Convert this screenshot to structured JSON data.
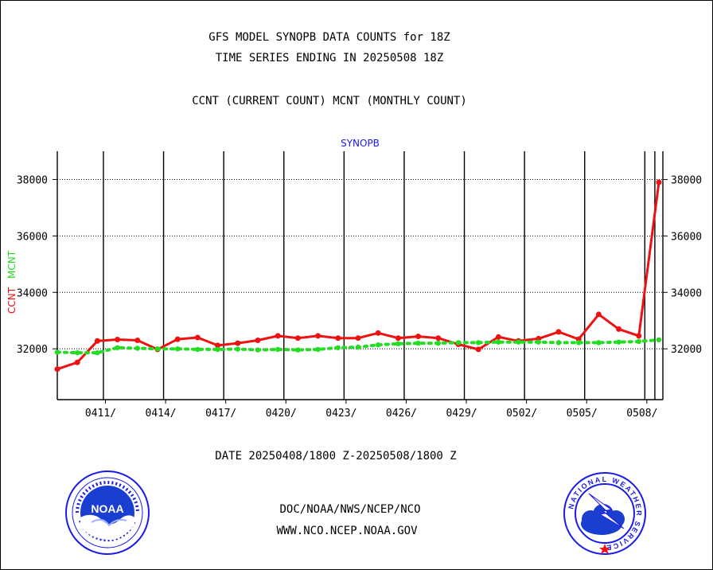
{
  "header": {
    "title_line1": "GFS MODEL SYNOPB DATA COUNTS for 18Z",
    "title_line2": "TIME SERIES ENDING IN 20250508 18Z",
    "legend_line": "CCNT (CURRENT COUNT) MCNT (MONTHLY COUNT)"
  },
  "footer": {
    "date_range": "DATE 20250408/1800 Z-20250508/1800 Z",
    "org_path": "DOC/NOAA/NWS/NCEP/NCO",
    "website": "WWW.NCO.NCEP.NOAA.GOV"
  },
  "logos": {
    "noaa_label": "NOAA",
    "nws_label": "NATIONAL WEATHER SERVICE"
  },
  "colors": {
    "ccnt": "#ee1111",
    "mcnt": "#22dd22",
    "subtitle": "#1a1aee",
    "footer_text": "#1a1aee",
    "date_text": "#ee1111"
  },
  "chart_data": {
    "type": "line",
    "title": "SYNOPB",
    "ylabel_left": [
      "CCNT",
      "MCNT"
    ],
    "ylim": [
      30200,
      39000
    ],
    "yticks": [
      32000,
      34000,
      36000,
      38000
    ],
    "ytick_labels": [
      "32000",
      "34000",
      "36000",
      "38000"
    ],
    "xlim": [
      0,
      30.2
    ],
    "x_tick_positions": [
      2.4,
      5.4,
      8.4,
      11.4,
      14.4,
      17.4,
      20.4,
      23.4,
      26.4,
      29.4
    ],
    "x_tick_labels": [
      "0411/",
      "0414/",
      "0417/",
      "0420/",
      "0423/",
      "0426/",
      "0429/",
      "0502/",
      "0505/",
      "0508/"
    ],
    "vertical_grid_at": [
      2.3,
      5.3,
      8.3,
      11.3,
      14.3,
      17.3,
      20.3,
      23.3,
      26.3,
      29.3,
      29.8
    ],
    "grid": true,
    "legend_placement": "none",
    "series": [
      {
        "name": "CCNT",
        "style": "solid",
        "x": [
          0,
          1,
          2,
          3,
          4,
          5,
          6,
          7,
          8,
          9,
          10,
          11,
          12,
          13,
          14,
          15,
          16,
          17,
          18,
          19,
          20,
          21,
          22,
          23,
          24,
          25,
          26,
          27,
          28,
          29,
          30
        ],
        "values": [
          31280,
          31520,
          32280,
          32330,
          32300,
          31980,
          32340,
          32400,
          32120,
          32200,
          32300,
          32460,
          32380,
          32460,
          32380,
          32380,
          32560,
          32380,
          32440,
          32380,
          32160,
          31980,
          32420,
          32280,
          32360,
          32600,
          32340,
          33220,
          32700,
          32460,
          37900
        ]
      },
      {
        "name": "MCNT",
        "style": "dotted",
        "x": [
          0,
          1,
          2,
          3,
          4,
          5,
          6,
          7,
          8,
          9,
          10,
          11,
          12,
          13,
          14,
          15,
          16,
          17,
          18,
          19,
          20,
          21,
          22,
          23,
          24,
          25,
          26,
          27,
          28,
          29,
          30
        ],
        "values": [
          31880,
          31860,
          31860,
          32040,
          32020,
          32000,
          32000,
          31980,
          31980,
          31990,
          31960,
          31980,
          31960,
          31980,
          32040,
          32060,
          32140,
          32180,
          32200,
          32200,
          32220,
          32220,
          32240,
          32240,
          32240,
          32220,
          32220,
          32220,
          32240,
          32260,
          32320
        ]
      }
    ]
  }
}
